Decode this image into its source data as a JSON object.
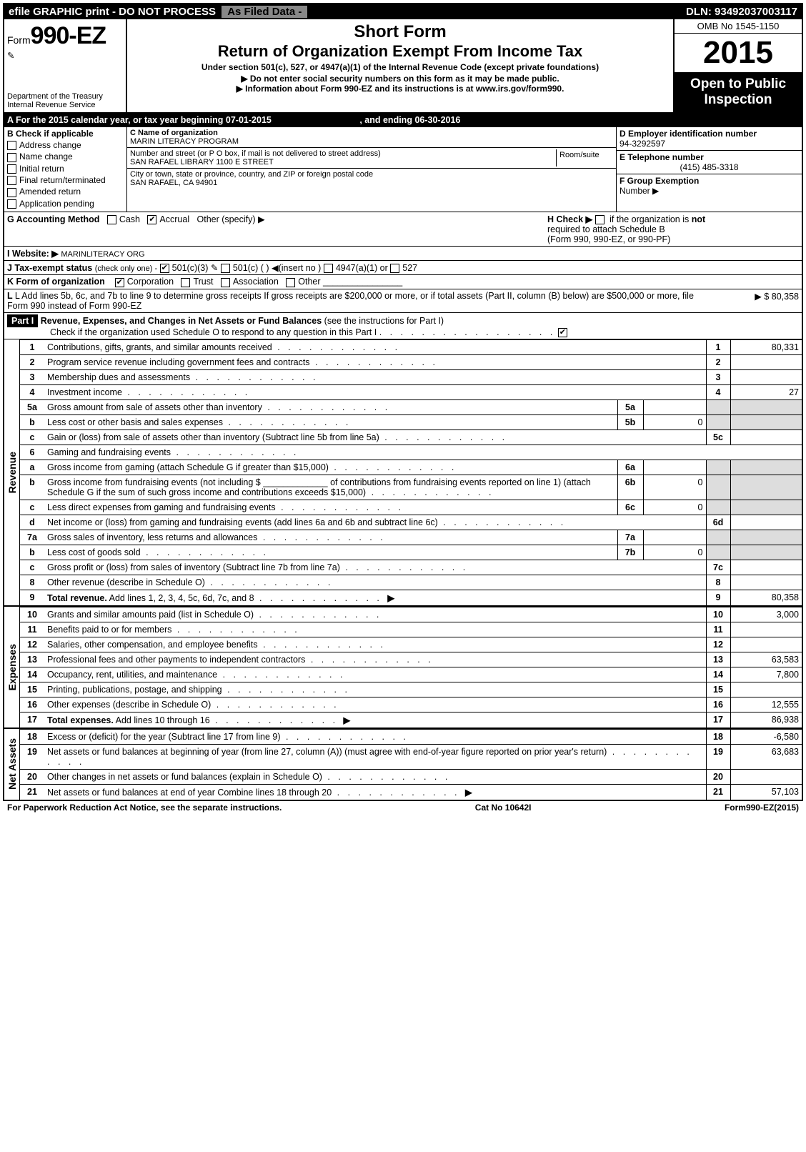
{
  "topbar": {
    "efile": "efile GRAPHIC print - DO NOT PROCESS",
    "asfiled": "As Filed Data -",
    "dln_label": "DLN:",
    "dln": "93492037003117"
  },
  "header": {
    "form_label": "Form",
    "form_number": "990-EZ",
    "dept1": "Department of the Treasury",
    "dept2": "Internal Revenue Service",
    "short_form": "Short Form",
    "return_title": "Return of Organization Exempt From Income Tax",
    "under": "Under section 501(c), 527, or 4947(a)(1) of the Internal Revenue Code (except private foundations)",
    "bullet1": "▶ Do not enter social security numbers on this form as it may be made public.",
    "bullet2_pre": "▶ Information about Form 990-EZ and its instructions is at ",
    "bullet2_link": "www.irs.gov/form990",
    "bullet2_post": ".",
    "omb": "OMB No 1545-1150",
    "year": "2015",
    "open1": "Open to Public",
    "open2": "Inspection"
  },
  "lineA": {
    "text_pre": "A  For the 2015 calendar year, or tax year beginning ",
    "begin": "07-01-2015",
    "mid": ", and ending ",
    "end": "06-30-2016"
  },
  "colB": {
    "title": "B  Check if applicable",
    "items": [
      "Address change",
      "Name change",
      "Initial return",
      "Final return/terminated",
      "Amended return",
      "Application pending"
    ]
  },
  "colC": {
    "c_label": "C Name of organization",
    "c_value": "MARIN LITERACY PROGRAM",
    "addr_label": "Number and street (or P O box, if mail is not delivered to street address)",
    "room_label": "Room/suite",
    "addr_value": "SAN RAFAEL LIBRARY 1100 E STREET",
    "city_label": "City or town, state or province, country, and ZIP or foreign postal code",
    "city_value": "SAN RAFAEL, CA  94901"
  },
  "colD": {
    "d_label": "D Employer identification number",
    "d_value": "94-3292597",
    "e_label": "E Telephone number",
    "e_value": "(415) 485-3318",
    "f_label": "F Group Exemption",
    "f_label2": "Number  ▶"
  },
  "gh": {
    "g_label": "G Accounting Method",
    "g_cash": "Cash",
    "g_accrual": "Accrual",
    "g_other": "Other (specify) ▶",
    "h_pre": "H  Check ▶",
    "h_post1": "if the organization is ",
    "h_not": "not",
    "h_line2": "required to attach Schedule B",
    "h_line3": "(Form 990, 990-EZ, or 990-PF)"
  },
  "ijk": {
    "i_label": "I Website: ▶",
    "i_value": "MARINLITERACY ORG",
    "j_label": "J Tax-exempt status",
    "j_small": "(check only one) -",
    "j_501c3": "501(c)(3)",
    "j_501c": "501(c) (   ) ◀(insert no )",
    "j_4947": "4947(a)(1) or",
    "j_527": "527",
    "k_label": "K Form of organization",
    "k_corp": "Corporation",
    "k_trust": "Trust",
    "k_assoc": "Association",
    "k_other": "Other"
  },
  "lineL": {
    "text": "L Add lines 5b, 6c, and 7b to line 9 to determine gross receipts If gross receipts are $200,000 or more, or if total assets (Part II, column (B) below) are $500,000 or more, file Form 990 instead of Form 990-EZ",
    "amount_pre": "▶ $ ",
    "amount": "80,358"
  },
  "part1": {
    "tag": "Part I",
    "title": "Revenue, Expenses, and Changes in Net Assets or Fund Balances",
    "title_post": " (see the instructions for Part I)",
    "check_line": "Check if the organization used Schedule O to respond to any question in this Part I"
  },
  "sections": {
    "revenue_label": "Revenue",
    "expenses_label": "Expenses",
    "net_label": "Net Assets"
  },
  "lines": [
    {
      "n": "1",
      "d": "Contributions, gifts, grants, and similar amounts received",
      "r": "1",
      "v": "80,331"
    },
    {
      "n": "2",
      "d": "Program service revenue including government fees and contracts",
      "r": "2",
      "v": ""
    },
    {
      "n": "3",
      "d": "Membership dues and assessments",
      "r": "3",
      "v": ""
    },
    {
      "n": "4",
      "d": "Investment income",
      "r": "4",
      "v": "27"
    },
    {
      "n": "5a",
      "d": "Gross amount from sale of assets other than inventory",
      "sn": "5a",
      "sv": ""
    },
    {
      "n": "b",
      "d": "Less cost or other basis and sales expenses",
      "sn": "5b",
      "sv": "0"
    },
    {
      "n": "c",
      "d": "Gain or (loss) from sale of assets other than inventory (Subtract line 5b from line 5a)",
      "r": "5c",
      "v": ""
    },
    {
      "n": "6",
      "d": "Gaming and fundraising events"
    },
    {
      "n": "a",
      "d": "Gross income from gaming (attach Schedule G if greater than $15,000)",
      "sn": "6a",
      "sv": ""
    },
    {
      "n": "b",
      "d": "Gross income from fundraising events (not including $ _____________ of contributions from fundraising events reported on line 1) (attach Schedule G if the sum of such gross income and contributions exceeds $15,000)",
      "sn": "6b",
      "sv": "0"
    },
    {
      "n": "c",
      "d": "Less direct expenses from gaming and fundraising events",
      "sn": "6c",
      "sv": "0"
    },
    {
      "n": "d",
      "d": "Net income or (loss) from gaming and fundraising events (add lines 6a and 6b and subtract line 6c)",
      "r": "6d",
      "v": ""
    },
    {
      "n": "7a",
      "d": "Gross sales of inventory, less returns and allowances",
      "sn": "7a",
      "sv": ""
    },
    {
      "n": "b",
      "d": "Less cost of goods sold",
      "sn": "7b",
      "sv": "0"
    },
    {
      "n": "c",
      "d": "Gross profit or (loss) from sales of inventory (Subtract line 7b from line 7a)",
      "r": "7c",
      "v": ""
    },
    {
      "n": "8",
      "d": "Other revenue (describe in Schedule O)",
      "r": "8",
      "v": ""
    },
    {
      "n": "9",
      "d_bold": "Total revenue.",
      "d": " Add lines 1, 2, 3, 4, 5c, 6d, 7c, and 8",
      "arrow": "▶",
      "r": "9",
      "v": "80,358"
    }
  ],
  "exp_lines": [
    {
      "n": "10",
      "d": "Grants and similar amounts paid (list in Schedule O)",
      "r": "10",
      "v": "3,000"
    },
    {
      "n": "11",
      "d": "Benefits paid to or for members",
      "r": "11",
      "v": ""
    },
    {
      "n": "12",
      "d": "Salaries, other compensation, and employee benefits",
      "r": "12",
      "v": ""
    },
    {
      "n": "13",
      "d": "Professional fees and other payments to independent contractors",
      "r": "13",
      "v": "63,583"
    },
    {
      "n": "14",
      "d": "Occupancy, rent, utilities, and maintenance",
      "r": "14",
      "v": "7,800"
    },
    {
      "n": "15",
      "d": "Printing, publications, postage, and shipping",
      "r": "15",
      "v": ""
    },
    {
      "n": "16",
      "d": "Other expenses (describe in Schedule O)",
      "r": "16",
      "v": "12,555"
    },
    {
      "n": "17",
      "d_bold": "Total expenses.",
      "d": " Add lines 10 through 16",
      "arrow": "▶",
      "r": "17",
      "v": "86,938"
    }
  ],
  "net_lines": [
    {
      "n": "18",
      "d": "Excess or (deficit) for the year (Subtract line 17 from line 9)",
      "r": "18",
      "v": "-6,580"
    },
    {
      "n": "19",
      "d": "Net assets or fund balances at beginning of year (from line 27, column (A)) (must agree with end-of-year figure reported on prior year's return)",
      "r": "19",
      "v": "63,683"
    },
    {
      "n": "20",
      "d": "Other changes in net assets or fund balances (explain in Schedule O)",
      "r": "20",
      "v": ""
    },
    {
      "n": "21",
      "d": "Net assets or fund balances at end of year Combine lines 18 through 20",
      "arrow": "▶",
      "r": "21",
      "v": "57,103"
    }
  ],
  "footer": {
    "left": "For Paperwork Reduction Act Notice, see the separate instructions.",
    "mid": "Cat No 10642I",
    "right_pre": "Form",
    "right_bold": "990-EZ",
    "right_post": "(2015)"
  },
  "colors": {
    "black": "#000000",
    "white": "#ffffff",
    "gray": "#dddddd"
  }
}
